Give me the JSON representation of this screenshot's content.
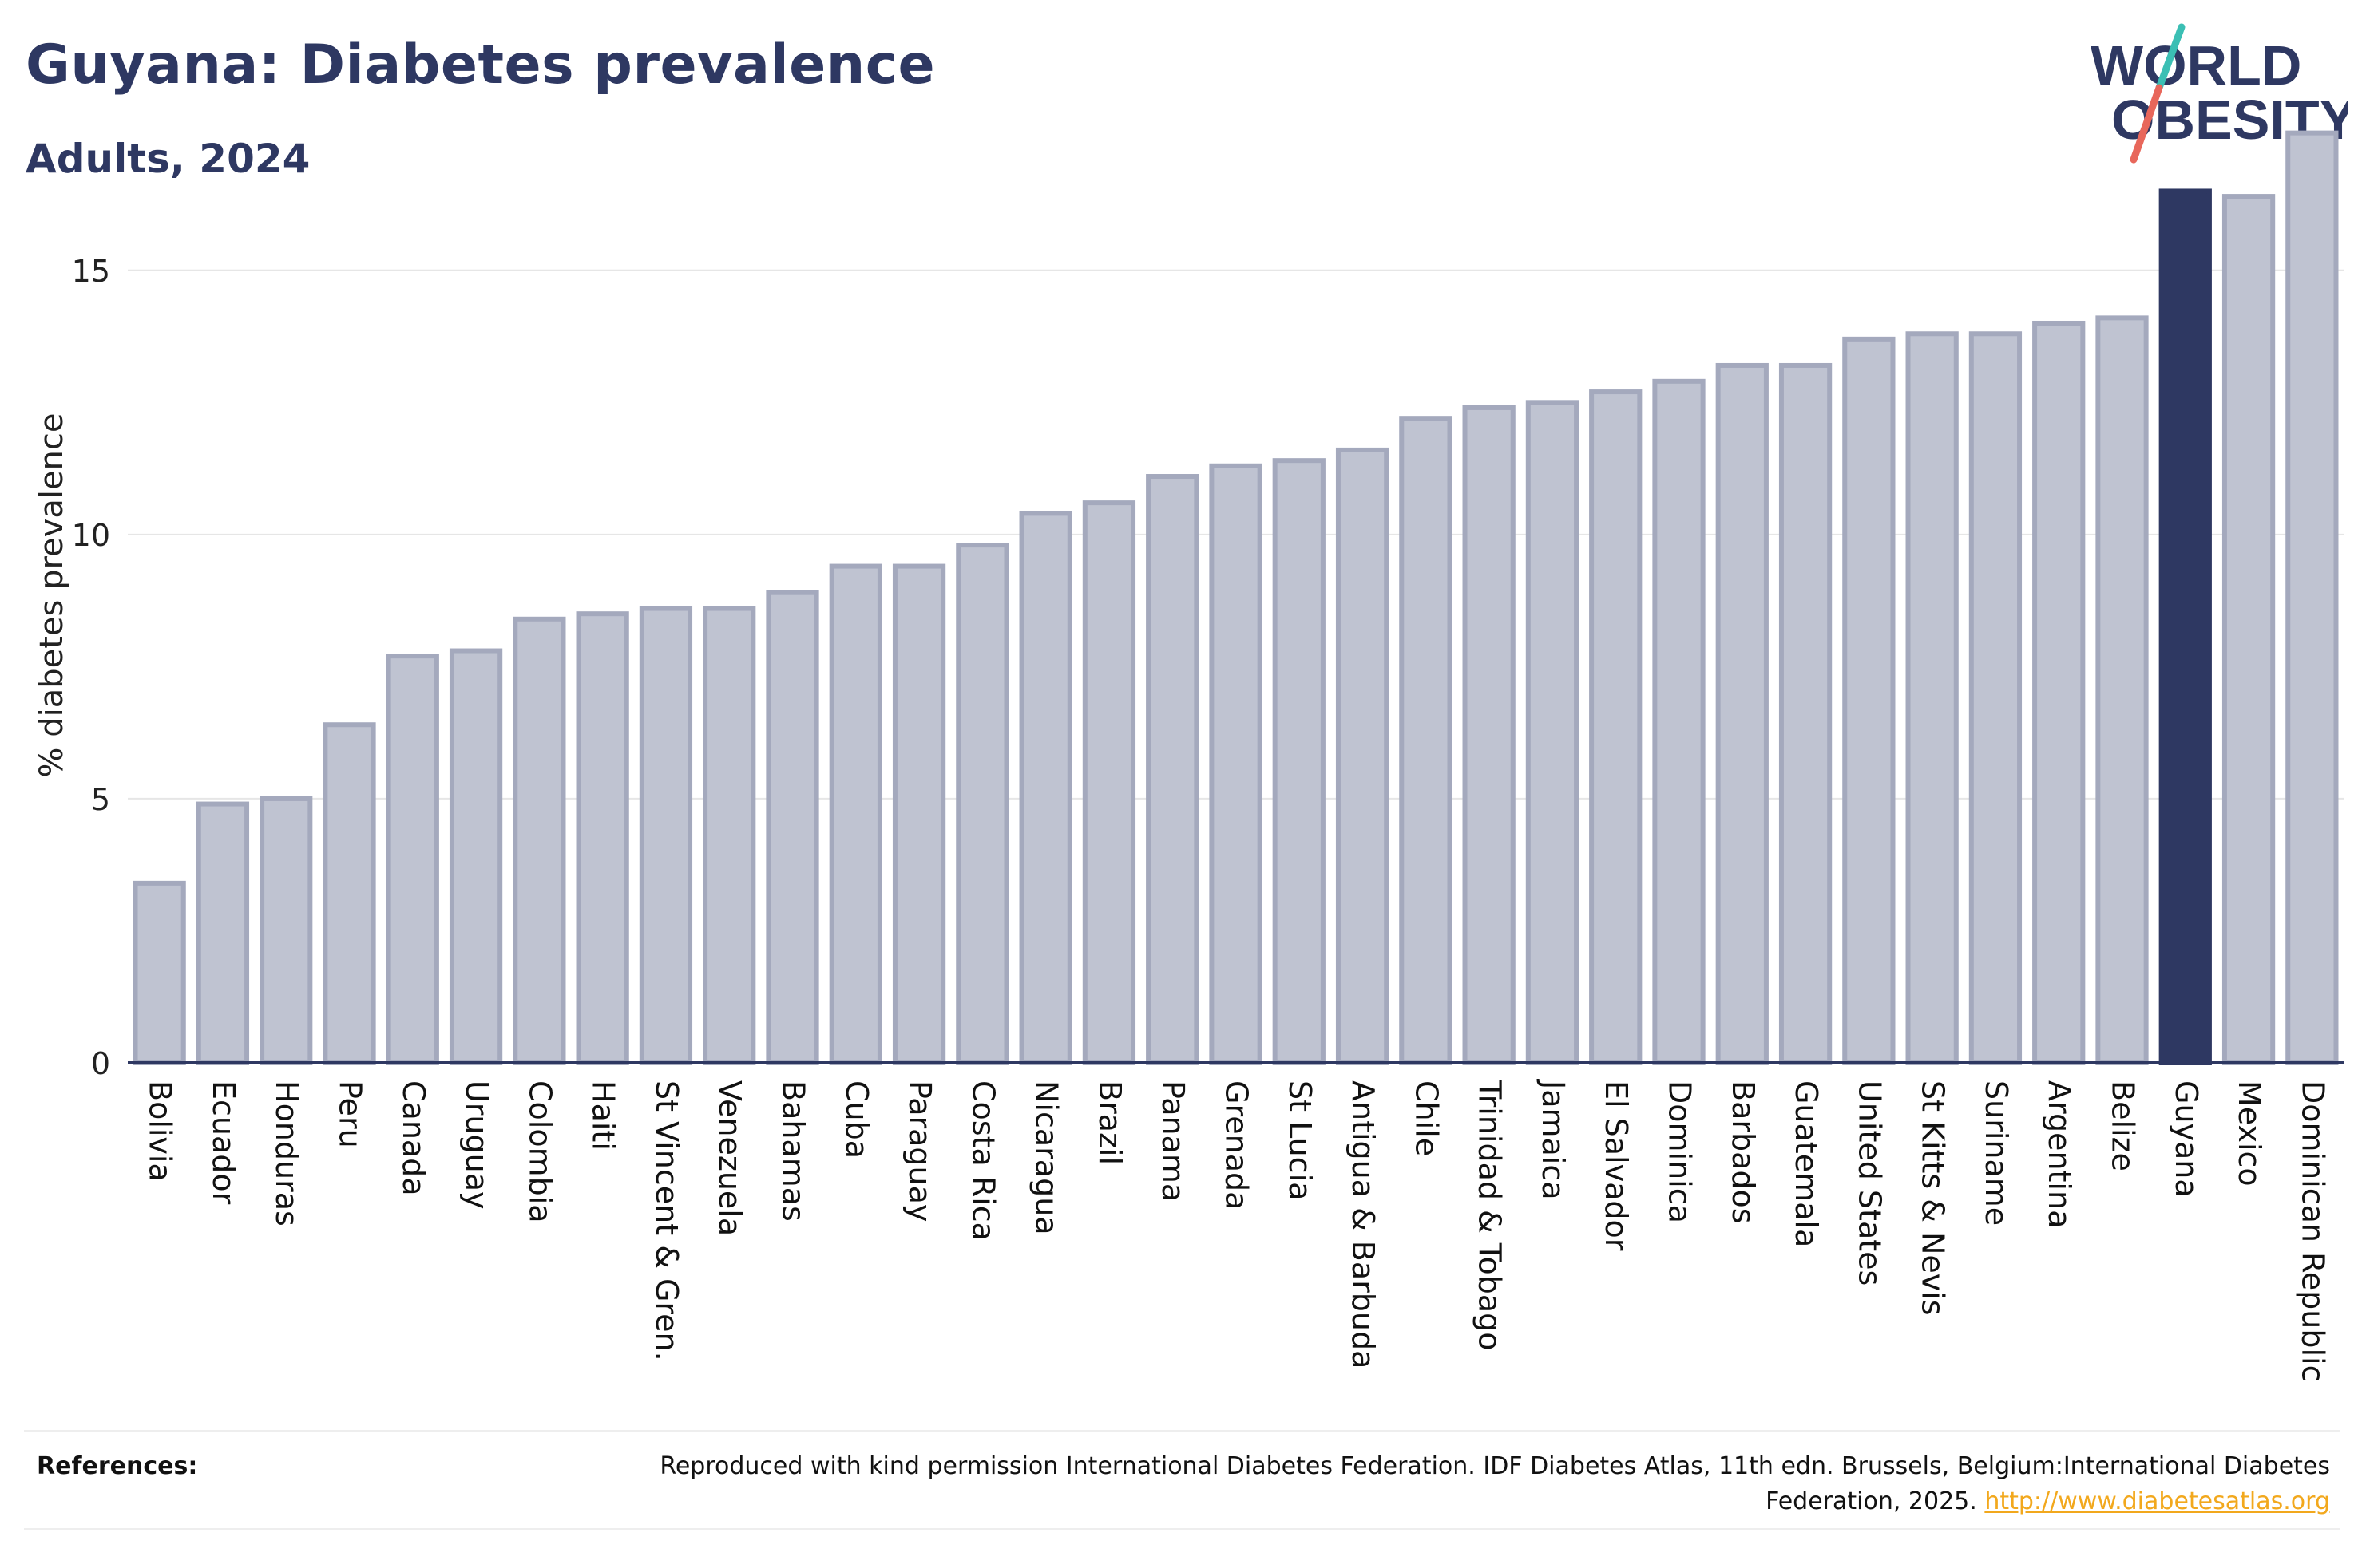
{
  "header": {
    "title": "Guyana: Diabetes prevalence",
    "subtitle": "Adults, 2024"
  },
  "logo": {
    "line1": "WORLD",
    "line2": "OBESITY",
    "slash_top": "#3bbfb4",
    "slash_bottom": "#e8675b",
    "text_color": "#2e3862"
  },
  "colors": {
    "bar_fill": "#bfc3d1",
    "bar_stroke": "#a4a9bd",
    "highlight": "#2e3862",
    "axis": "#2e3862",
    "grid": "#e6e6e6"
  },
  "chart_data": {
    "type": "bar",
    "title": "",
    "ylabel": "% diabetes prevalence",
    "xlabel": "",
    "ylim": [
      0,
      17.7
    ],
    "yticks": [
      0,
      5,
      10,
      15
    ],
    "highlight": "Guyana",
    "grid": "horizontal",
    "categories": [
      "Bolivia",
      "Ecuador",
      "Honduras",
      "Peru",
      "Canada",
      "Uruguay",
      "Colombia",
      "Haiti",
      "St Vincent & Gren.",
      "Venezuela",
      "Bahamas",
      "Cuba",
      "Paraguay",
      "Costa Rica",
      "Nicaragua",
      "Brazil",
      "Panama",
      "Grenada",
      "St Lucia",
      "Antigua & Barbuda",
      "Chile",
      "Trinidad & Tobago",
      "Jamaica",
      "El Salvador",
      "Dominica",
      "Barbados",
      "Guatemala",
      "United States",
      "St Kitts & Nevis",
      "Suriname",
      "Argentina",
      "Belize",
      "Guyana",
      "Mexico",
      "Dominican Republic"
    ],
    "values": [
      3.4,
      4.9,
      5.0,
      6.4,
      7.7,
      7.8,
      8.4,
      8.5,
      8.6,
      8.6,
      8.9,
      9.4,
      9.4,
      9.8,
      10.4,
      10.6,
      11.1,
      11.3,
      11.4,
      11.6,
      12.2,
      12.4,
      12.5,
      12.7,
      12.9,
      13.2,
      13.2,
      13.7,
      13.8,
      13.8,
      14.0,
      14.1,
      16.5,
      16.4,
      17.6
    ]
  },
  "references": {
    "label": "References:",
    "text": "Reproduced with kind permission International Diabetes Federation. IDF Diabetes Atlas, 11th edn. Brussels, Belgium:International Diabetes Federation, 2025. ",
    "link": "http://www.diabetesatlas.org"
  }
}
